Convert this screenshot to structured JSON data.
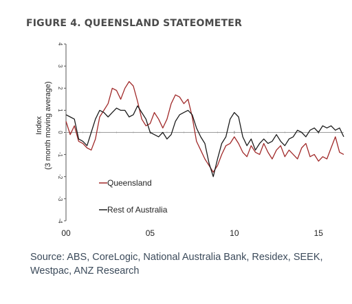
{
  "figure_title": "FIGURE 4. QUEENSLAND STATEOMETER",
  "source_note": "Source: ABS, CoreLogic, National Australia Bank, Residex, SEEK, Westpac, ANZ Research",
  "chart_data": {
    "type": "line",
    "ylabel": "Index",
    "ylabel_sub": "(3 month moving average)",
    "xlabel": "",
    "ylim": [
      -4,
      4
    ],
    "yticks": [
      4,
      3,
      2,
      1,
      0,
      -1,
      -2,
      -3,
      -4
    ],
    "xlim": [
      2000,
      2016.5
    ],
    "xticks": [
      2000,
      2005,
      2010,
      2015
    ],
    "xtick_labels": [
      "00",
      "05",
      "10",
      "15"
    ],
    "legend_position": "inside-lower-left",
    "series": [
      {
        "name": "Queensland",
        "color": "#a02828",
        "x": [
          2000.0,
          2000.25,
          2000.5,
          2000.75,
          2001.0,
          2001.25,
          2001.5,
          2001.75,
          2002.0,
          2002.25,
          2002.5,
          2002.75,
          2003.0,
          2003.25,
          2003.5,
          2003.75,
          2004.0,
          2004.25,
          2004.5,
          2004.75,
          2005.0,
          2005.25,
          2005.5,
          2005.75,
          2006.0,
          2006.25,
          2006.5,
          2006.75,
          2007.0,
          2007.25,
          2007.5,
          2007.75,
          2008.0,
          2008.25,
          2008.5,
          2008.75,
          2009.0,
          2009.25,
          2009.5,
          2009.75,
          2010.0,
          2010.25,
          2010.5,
          2010.75,
          2011.0,
          2011.25,
          2011.5,
          2011.75,
          2012.0,
          2012.25,
          2012.5,
          2012.75,
          2013.0,
          2013.25,
          2013.5,
          2013.75,
          2014.0,
          2014.25,
          2014.5,
          2014.75,
          2015.0,
          2015.25,
          2015.5,
          2015.75,
          2016.0,
          2016.25,
          2016.5
        ],
        "y": [
          0.5,
          -0.1,
          0.3,
          -0.4,
          -0.5,
          -0.7,
          -0.8,
          -0.3,
          0.7,
          1.0,
          1.3,
          2.0,
          1.9,
          1.5,
          2.0,
          2.3,
          2.1,
          1.4,
          0.6,
          0.3,
          0.4,
          0.9,
          0.6,
          0.2,
          0.6,
          1.3,
          1.7,
          1.6,
          1.3,
          1.5,
          0.7,
          -0.4,
          -0.8,
          -1.2,
          -1.5,
          -1.8,
          -1.5,
          -1.0,
          -0.6,
          -0.5,
          -0.2,
          -0.5,
          -0.9,
          -1.1,
          -0.6,
          -0.9,
          -1.0,
          -0.5,
          -0.9,
          -1.2,
          -0.8,
          -0.6,
          -1.1,
          -0.8,
          -1.0,
          -1.2,
          -0.7,
          -0.5,
          -1.1,
          -1.0,
          -1.3,
          -1.1,
          -1.2,
          -0.7,
          -0.2,
          -0.9,
          -1.0
        ]
      },
      {
        "name": "Rest of Australia",
        "color": "#1a1a1a",
        "x": [
          2000.0,
          2000.25,
          2000.5,
          2000.75,
          2001.0,
          2001.25,
          2001.5,
          2001.75,
          2002.0,
          2002.25,
          2002.5,
          2002.75,
          2003.0,
          2003.25,
          2003.5,
          2003.75,
          2004.0,
          2004.25,
          2004.5,
          2004.75,
          2005.0,
          2005.25,
          2005.5,
          2005.75,
          2006.0,
          2006.25,
          2006.5,
          2006.75,
          2007.0,
          2007.25,
          2007.5,
          2007.75,
          2008.0,
          2008.25,
          2008.5,
          2008.75,
          2009.0,
          2009.25,
          2009.5,
          2009.75,
          2010.0,
          2010.25,
          2010.5,
          2010.75,
          2011.0,
          2011.25,
          2011.5,
          2011.75,
          2012.0,
          2012.25,
          2012.5,
          2012.75,
          2013.0,
          2013.25,
          2013.5,
          2013.75,
          2014.0,
          2014.25,
          2014.5,
          2014.75,
          2015.0,
          2015.25,
          2015.5,
          2015.75,
          2016.0,
          2016.25,
          2016.5
        ],
        "y": [
          0.8,
          0.7,
          0.6,
          -0.3,
          -0.4,
          -0.6,
          0.0,
          0.6,
          1.0,
          0.9,
          0.7,
          0.9,
          1.1,
          1.0,
          1.0,
          0.7,
          0.8,
          1.2,
          0.9,
          0.6,
          0.0,
          -0.1,
          -0.2,
          0.0,
          -0.3,
          -0.1,
          0.5,
          0.8,
          0.9,
          1.0,
          0.8,
          0.2,
          -0.2,
          -0.5,
          -1.4,
          -2.0,
          -1.2,
          -0.5,
          -0.2,
          0.6,
          0.9,
          0.7,
          -0.2,
          -0.6,
          -0.3,
          -0.8,
          -0.5,
          -0.3,
          -0.5,
          -0.4,
          -0.1,
          -0.4,
          -0.6,
          -0.3,
          -0.2,
          0.1,
          0.0,
          -0.2,
          0.1,
          0.2,
          0.0,
          0.3,
          0.2,
          0.3,
          0.1,
          0.2,
          -0.2
        ]
      }
    ]
  }
}
